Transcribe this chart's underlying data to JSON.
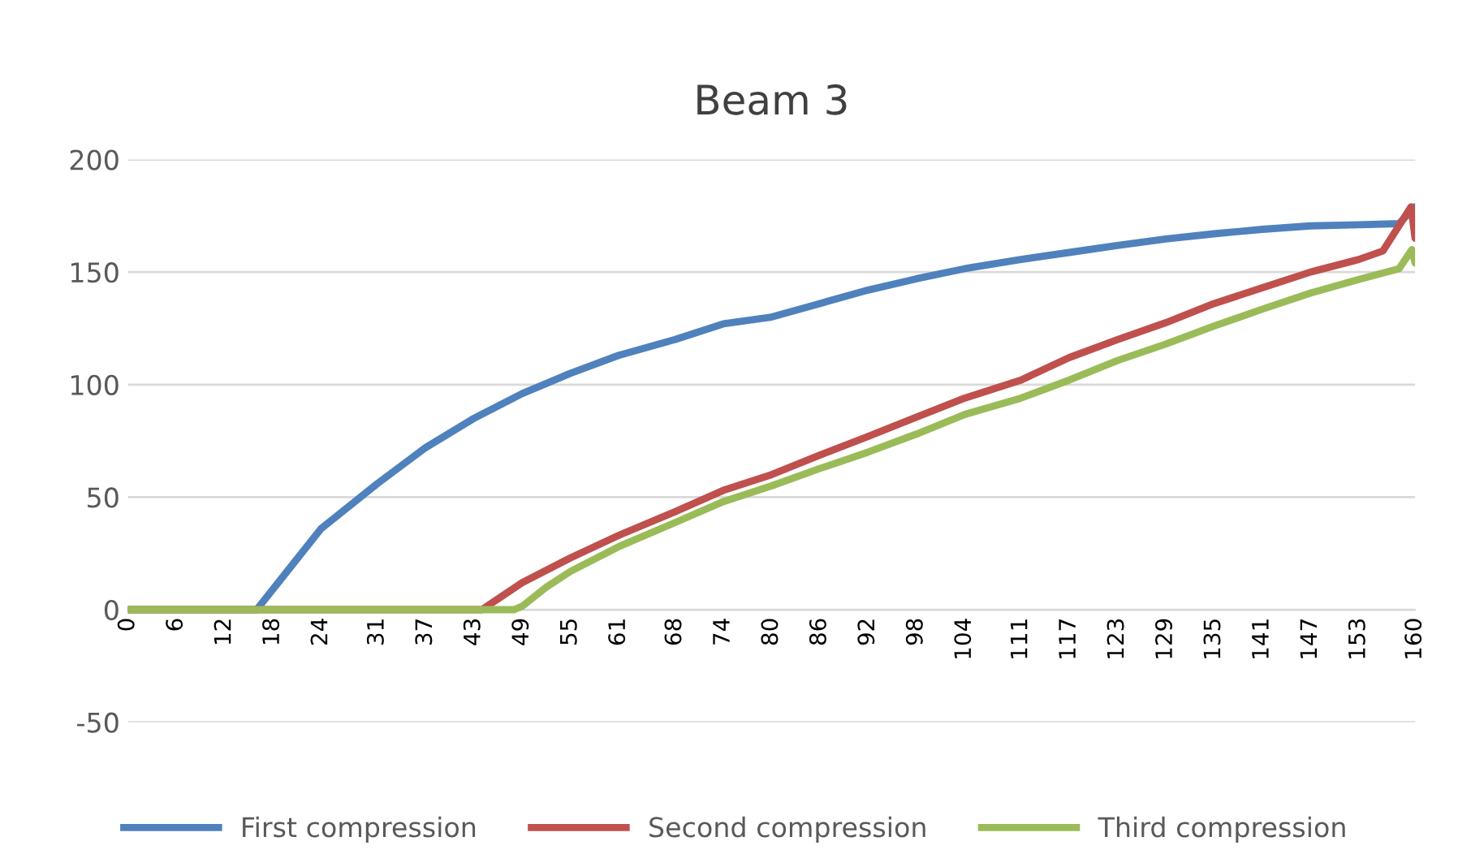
{
  "chart_data": {
    "type": "line",
    "title": "Beam 3",
    "xlim": [
      0,
      160
    ],
    "xticks": [
      0,
      6,
      12,
      18,
      24,
      31,
      37,
      43,
      49,
      55,
      61,
      68,
      74,
      80,
      86,
      92,
      98,
      104,
      111,
      117,
      123,
      129,
      135,
      141,
      147,
      153,
      160
    ],
    "ylim": [
      -50,
      200
    ],
    "yticks": [
      -50,
      0,
      50,
      100,
      150,
      200
    ],
    "grid": "y",
    "legend": "bottom",
    "marker": "none",
    "line_style": "solid",
    "series": [
      {
        "name": "First compression",
        "color": "#4f81bd",
        "x": [
          0,
          16,
          20,
          24,
          31,
          37,
          43,
          49,
          55,
          61,
          68,
          74,
          80,
          86,
          92,
          98,
          104,
          111,
          117,
          123,
          129,
          135,
          141,
          147,
          153,
          158,
          160
        ],
        "values": [
          0,
          0,
          18,
          36,
          56,
          72,
          85,
          96,
          105,
          113,
          120,
          127,
          130,
          136,
          142,
          147,
          151.5,
          155.6,
          158.7,
          161.8,
          164.7,
          167,
          169,
          170.5,
          171,
          171.5,
          179
        ]
      },
      {
        "name": "Second compression",
        "color": "#c0504d",
        "x": [
          0,
          44,
          49,
          55,
          61,
          68,
          74,
          80,
          86,
          92,
          98,
          104,
          111,
          117,
          123,
          129,
          135,
          141,
          147,
          153,
          156,
          159.5,
          160
        ],
        "values": [
          0,
          0,
          12,
          23,
          33,
          43.5,
          53,
          60,
          68.7,
          77,
          85.5,
          94,
          102,
          112,
          120,
          127.5,
          136,
          143,
          150,
          155.6,
          159.4,
          179,
          165
        ]
      },
      {
        "name": "Third compression",
        "color": "#9bbb59",
        "x": [
          0,
          48,
          49,
          52,
          55,
          61,
          68,
          74,
          80,
          86,
          92,
          98,
          104,
          111,
          117,
          123,
          129,
          135,
          141,
          147,
          153,
          158,
          159.6,
          160
        ],
        "values": [
          0,
          0,
          1.5,
          10,
          17,
          28,
          38.7,
          48,
          55,
          62.7,
          70,
          78,
          86.7,
          94,
          102,
          110.7,
          118,
          126,
          133.5,
          140.7,
          146.7,
          151.5,
          160,
          154
        ]
      }
    ]
  }
}
